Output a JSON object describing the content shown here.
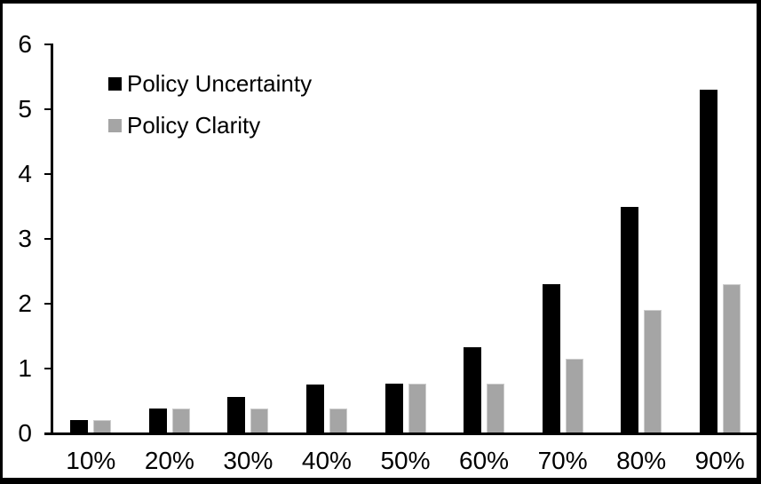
{
  "figure": {
    "background_color": "#ffffff",
    "border_color": "#000000",
    "text_color": "#000000"
  },
  "legend": {
    "items": [
      {
        "label": "Policy Uncertainty",
        "color": "#000000"
      },
      {
        "label": "Policy Clarity",
        "color": "#a5a5a5"
      }
    ]
  },
  "chart_data": {
    "type": "bar",
    "title": "",
    "xlabel": "",
    "ylabel": "",
    "categories": [
      "10%",
      "20%",
      "30%",
      "40%",
      "50%",
      "60%",
      "70%",
      "80%",
      "90%"
    ],
    "series": [
      {
        "name": "Policy Uncertainty",
        "color": "#000000",
        "values": [
          0.2,
          0.38,
          0.56,
          0.75,
          0.77,
          1.33,
          2.3,
          3.5,
          5.3
        ]
      },
      {
        "name": "Policy Clarity",
        "color": "#a5a5a5",
        "values": [
          0.2,
          0.38,
          0.38,
          0.38,
          0.77,
          0.77,
          1.15,
          1.9,
          2.3
        ]
      }
    ],
    "y_ticks": [
      0,
      1,
      2,
      3,
      4,
      5,
      6
    ],
    "ylim": [
      0,
      6
    ],
    "grid": false,
    "legend_position": "inside-top-left"
  }
}
